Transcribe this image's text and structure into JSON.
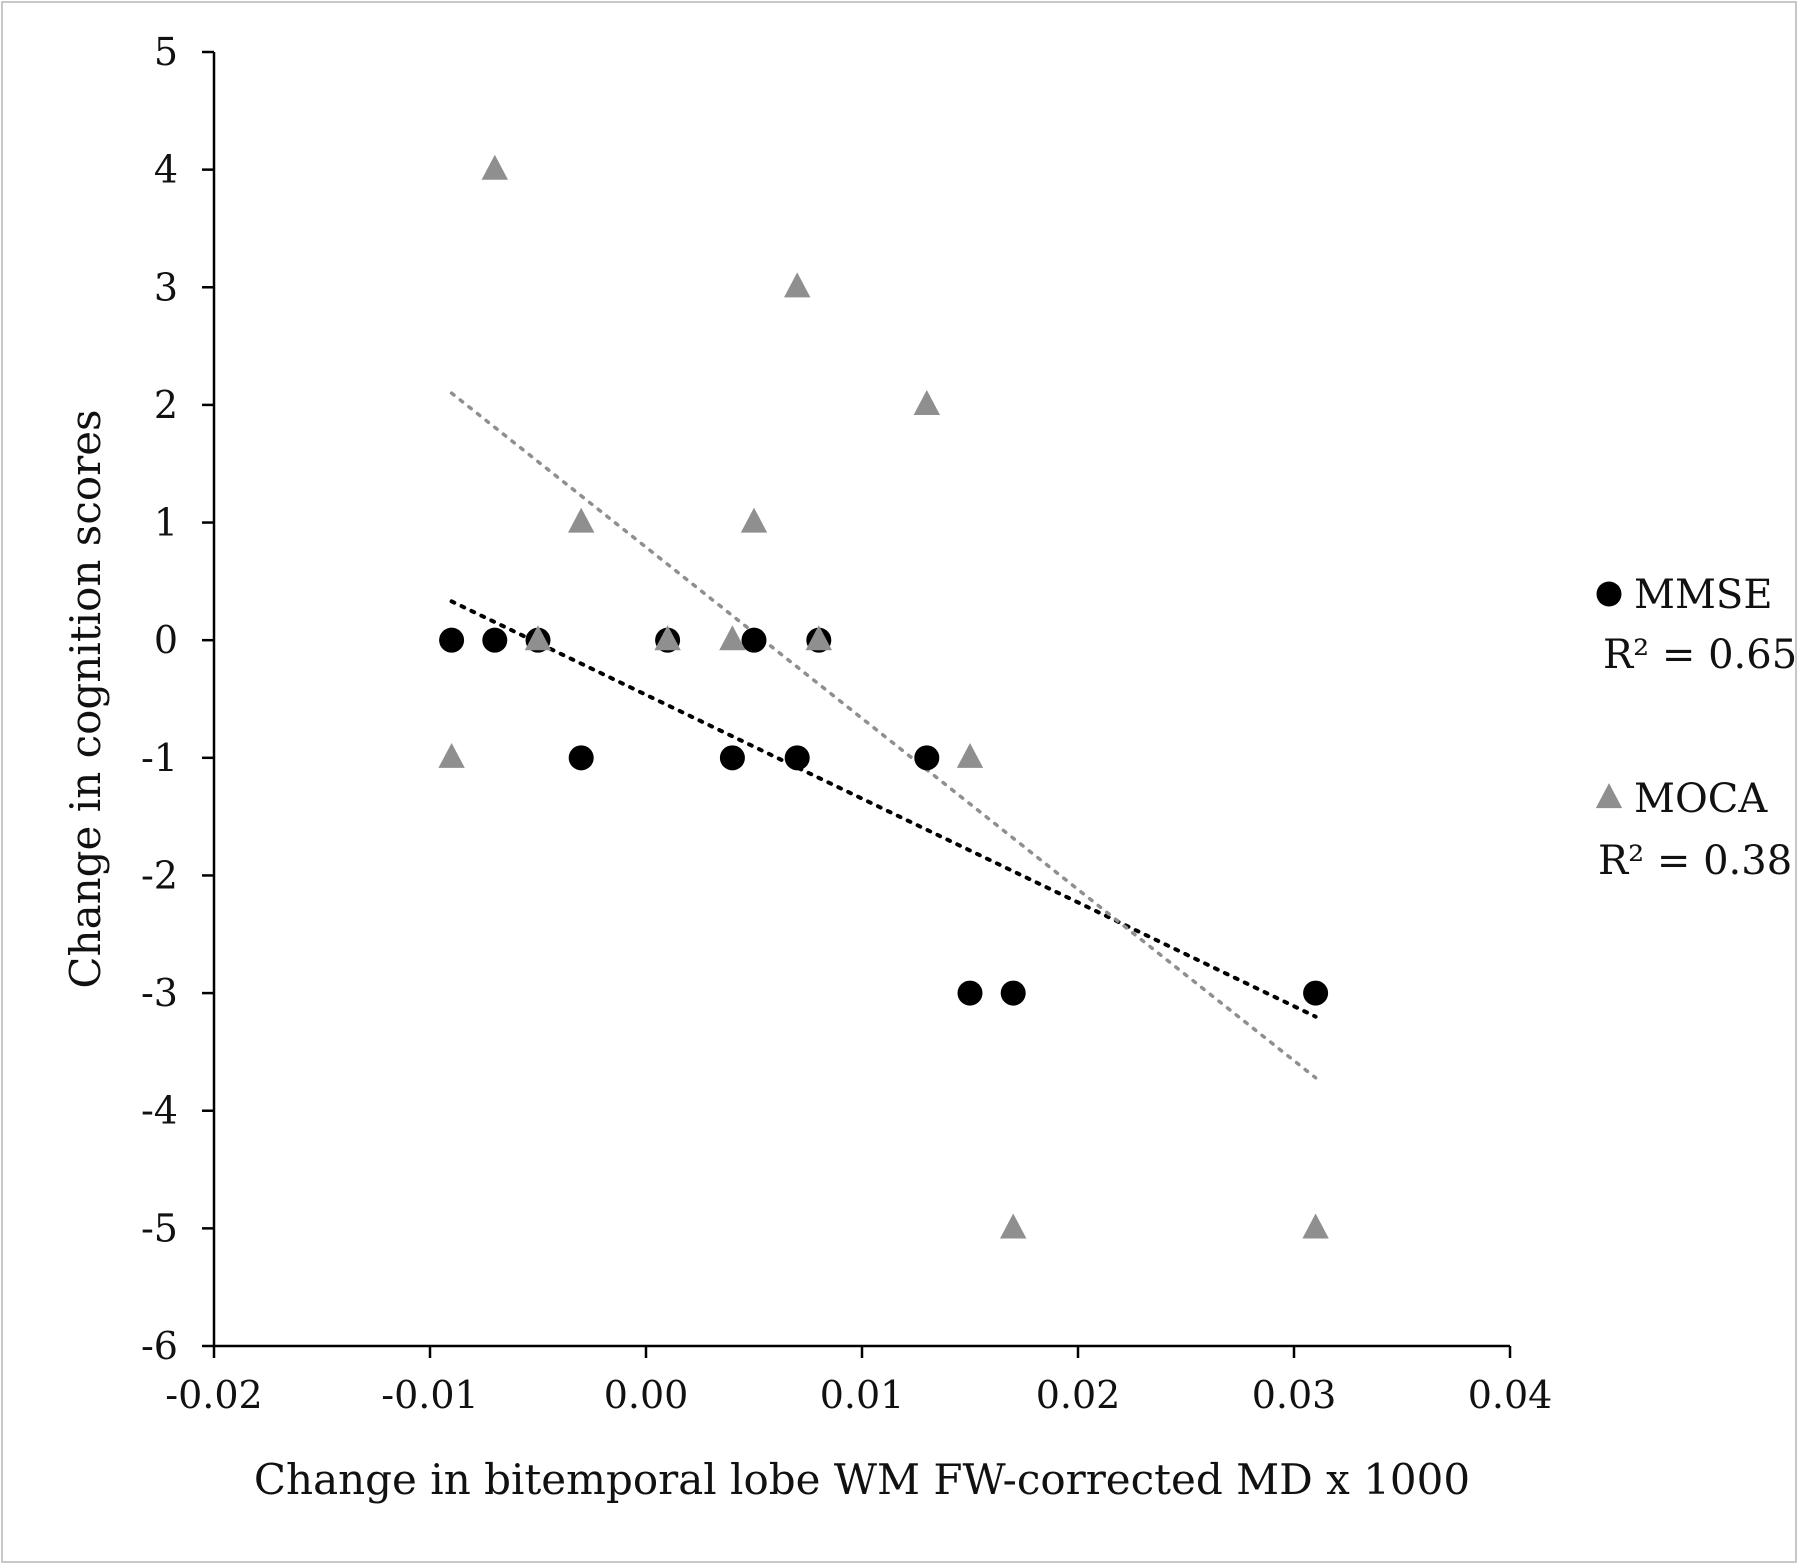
{
  "chart_data": {
    "type": "scatter",
    "xlabel": "Change in bitemporal lobe WM FW-corrected MD x 1000",
    "ylabel": "Change in cognition scores",
    "xlim": [
      -0.02,
      0.04
    ],
    "ylim": [
      -6,
      5
    ],
    "x_ticks": [
      "-0.02",
      "-0.01",
      "0.00",
      "0.01",
      "0.02",
      "0.03",
      "0.04"
    ],
    "x_tick_values": [
      -0.02,
      -0.01,
      0.0,
      0.01,
      0.02,
      0.03,
      0.04
    ],
    "y_ticks": [
      "5",
      "4",
      "3",
      "2",
      "1",
      "0",
      "-1",
      "-2",
      "-3",
      "-4",
      "-5",
      "-6"
    ],
    "y_tick_values": [
      5,
      4,
      3,
      2,
      1,
      0,
      -1,
      -2,
      -3,
      -4,
      -5,
      -6
    ],
    "grid": false,
    "legend_position": "right",
    "series": [
      {
        "name": "MMSE",
        "r2_label": "R² = 0.65",
        "marker": "circle",
        "color": "#000000",
        "points": [
          [
            -0.009,
            0
          ],
          [
            -0.007,
            0
          ],
          [
            -0.005,
            0
          ],
          [
            0.001,
            0
          ],
          [
            0.005,
            0
          ],
          [
            0.008,
            0
          ],
          [
            -0.003,
            -1
          ],
          [
            0.004,
            -1
          ],
          [
            0.007,
            -1
          ],
          [
            0.013,
            -1
          ],
          [
            0.015,
            -3
          ],
          [
            0.017,
            -3
          ],
          [
            0.031,
            -3
          ]
        ],
        "trendline": {
          "x": [
            -0.009,
            0.031
          ],
          "y": [
            0.33,
            -3.2
          ]
        }
      },
      {
        "name": "MOCA",
        "r2_label": "R² = 0.38",
        "marker": "triangle",
        "color": "#8f8f8f",
        "points": [
          [
            -0.007,
            4
          ],
          [
            0.007,
            3
          ],
          [
            0.013,
            2
          ],
          [
            -0.003,
            1
          ],
          [
            0.005,
            1
          ],
          [
            -0.005,
            0
          ],
          [
            0.001,
            0
          ],
          [
            0.004,
            0
          ],
          [
            0.008,
            0
          ],
          [
            -0.009,
            -1
          ],
          [
            0.015,
            -1
          ],
          [
            0.017,
            -5
          ],
          [
            0.031,
            -5
          ]
        ],
        "trendline": {
          "x": [
            -0.009,
            0.031
          ],
          "y": [
            2.1,
            -3.72
          ]
        }
      }
    ]
  }
}
